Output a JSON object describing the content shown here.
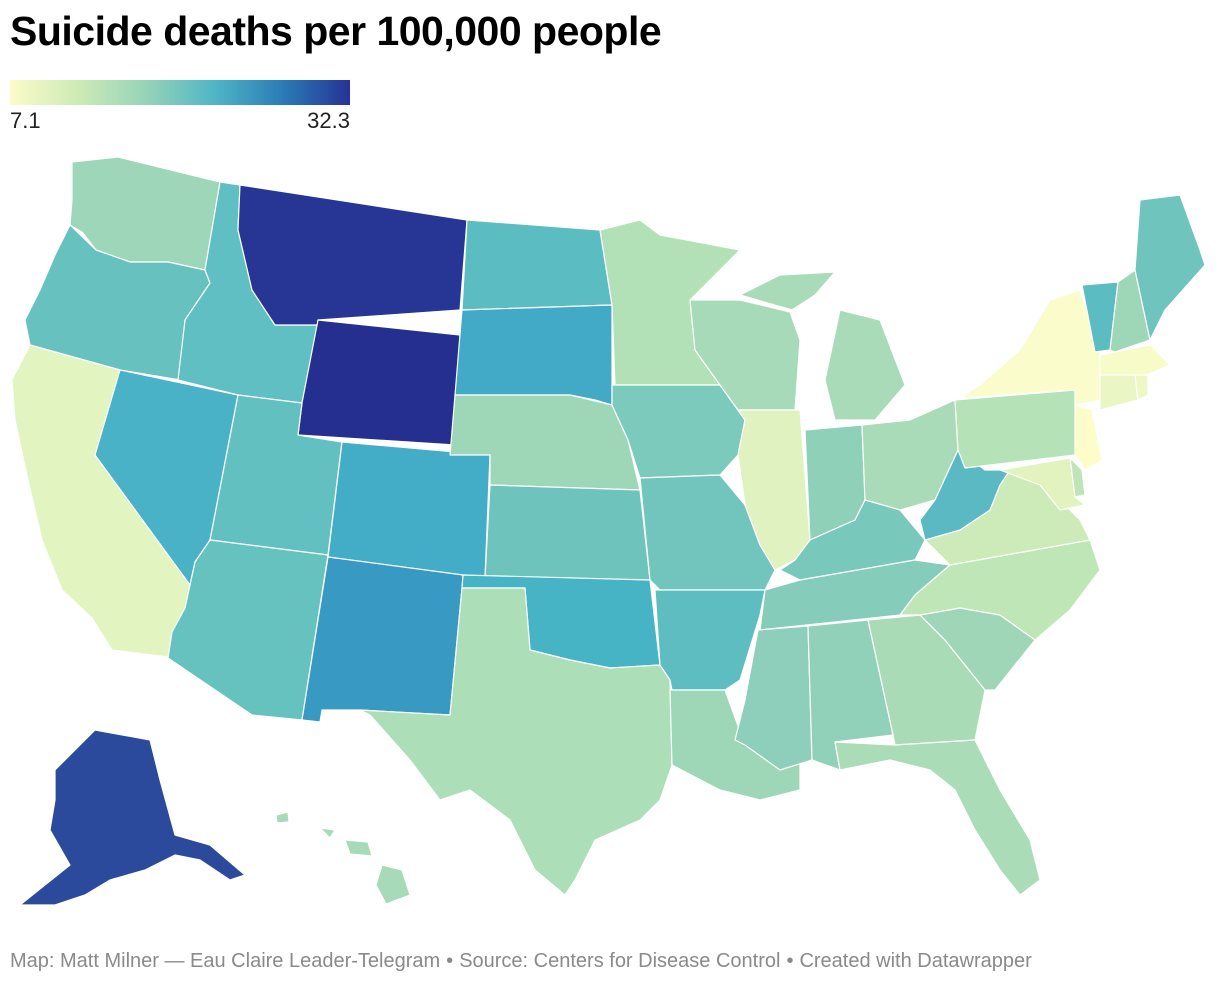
{
  "title": "Suicide deaths per 100,000 people",
  "legend": {
    "min": "7.1",
    "max": "32.3",
    "min_value": 7.1,
    "max_value": 32.3,
    "colors": [
      "#fbfcc9",
      "#cdebb6",
      "#97d3b8",
      "#4fb6c6",
      "#2b7cb7",
      "#253395"
    ]
  },
  "footer": {
    "map_credit": "Map: Matt Milner — Eau Claire Leader-Telegram",
    "source": "Source: Centers for Disease Control",
    "tool": "Created with Datawrapper",
    "separator": "•"
  },
  "states": [
    {
      "id": "WA",
      "color": "#9dd6b8"
    },
    {
      "id": "OR",
      "color": "#66c1bf"
    },
    {
      "id": "CA",
      "color": "#e2f4c0"
    },
    {
      "id": "NV",
      "color": "#49b2c6"
    },
    {
      "id": "ID",
      "color": "#5fbfc2"
    },
    {
      "id": "MT",
      "color": "#273594"
    },
    {
      "id": "WY",
      "color": "#252f8f"
    },
    {
      "id": "UT",
      "color": "#63c0c0"
    },
    {
      "id": "AZ",
      "color": "#66c2be"
    },
    {
      "id": "CO",
      "color": "#43adc7"
    },
    {
      "id": "NM",
      "color": "#3899c2"
    },
    {
      "id": "ND",
      "color": "#5bbdc2"
    },
    {
      "id": "SD",
      "color": "#42a9c6"
    },
    {
      "id": "NE",
      "color": "#9ed7b8"
    },
    {
      "id": "KS",
      "color": "#6ec3bd"
    },
    {
      "id": "OK",
      "color": "#47b4c6"
    },
    {
      "id": "TX",
      "color": "#acdeb7"
    },
    {
      "id": "MN",
      "color": "#b2e0b7"
    },
    {
      "id": "IA",
      "color": "#7ccabc"
    },
    {
      "id": "MO",
      "color": "#71c5bd"
    },
    {
      "id": "AR",
      "color": "#5dbdc1"
    },
    {
      "id": "LA",
      "color": "#9ed6b8"
    },
    {
      "id": "WI",
      "color": "#a6dab8"
    },
    {
      "id": "IL",
      "color": "#e0f2bf"
    },
    {
      "id": "MI",
      "color": "#aadbb8"
    },
    {
      "id": "IN",
      "color": "#8fd0b9"
    },
    {
      "id": "OH",
      "color": "#aadbb8"
    },
    {
      "id": "KY",
      "color": "#79c8bc"
    },
    {
      "id": "TN",
      "color": "#86ccbb"
    },
    {
      "id": "MS",
      "color": "#8dcfba"
    },
    {
      "id": "AL",
      "color": "#92d1b9"
    },
    {
      "id": "GA",
      "color": "#a9dbb7"
    },
    {
      "id": "FL",
      "color": "#aadcb7"
    },
    {
      "id": "SC",
      "color": "#9fd6b8"
    },
    {
      "id": "NC",
      "color": "#bfe6b6"
    },
    {
      "id": "VA",
      "color": "#cdebb8"
    },
    {
      "id": "WV",
      "color": "#5ab9c2"
    },
    {
      "id": "PA",
      "color": "#b6e2b7"
    },
    {
      "id": "NY",
      "color": "#fafccb"
    },
    {
      "id": "VT",
      "color": "#5bbdc2"
    },
    {
      "id": "NH",
      "color": "#9ed6b8"
    },
    {
      "id": "ME",
      "color": "#6fc4be"
    },
    {
      "id": "MA",
      "color": "#f7fbc7"
    },
    {
      "id": "CT",
      "color": "#eaf6c3"
    },
    {
      "id": "RI",
      "color": "#eef8c4"
    },
    {
      "id": "NJ",
      "color": "#fcfdc9"
    },
    {
      "id": "DE",
      "color": "#bde5b7"
    },
    {
      "id": "MD",
      "color": "#e2f3bf"
    },
    {
      "id": "AK",
      "color": "#2c4a9c"
    },
    {
      "id": "HI",
      "color": "#a6dab8"
    }
  ]
}
